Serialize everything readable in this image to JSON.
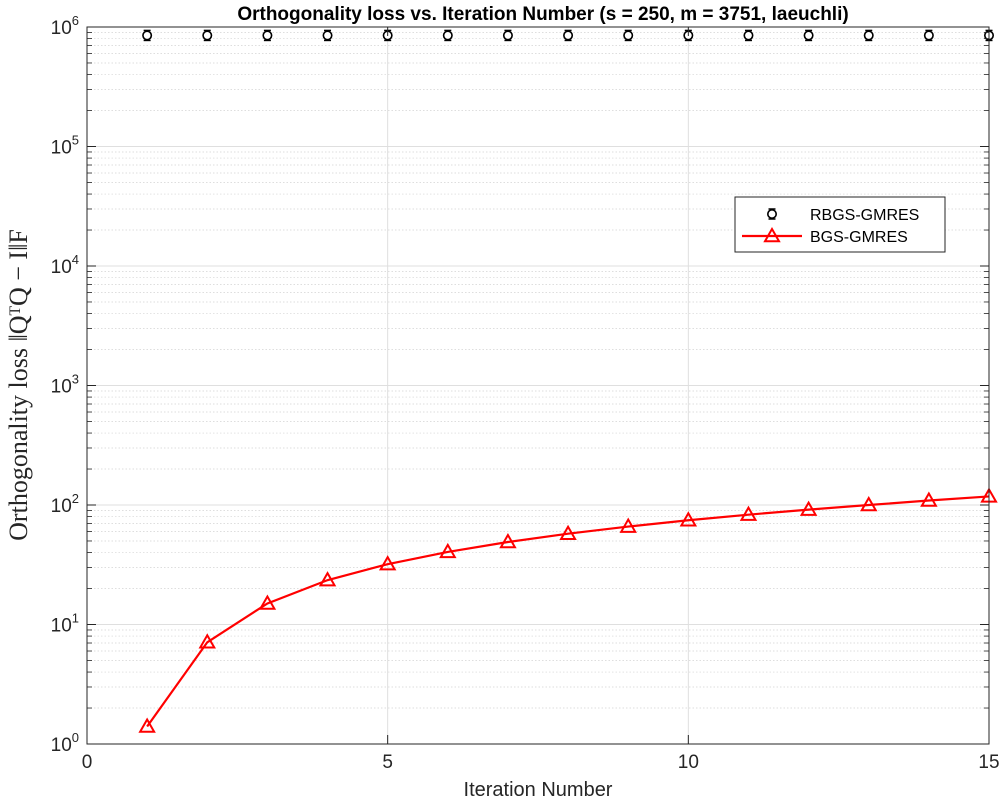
{
  "chart_data": {
    "type": "line",
    "title": "Orthogonality loss vs. Iteration Number (s = 250, m = 3751, laeuchli)",
    "xlabel": "Iteration Number",
    "ylabel": "Orthogonality loss ‖QᵀQ − I‖F",
    "xlim": [
      0,
      15
    ],
    "ylim": [
      1,
      1000000
    ],
    "yscale": "log",
    "grid": true,
    "minor_grid": true,
    "legend_position": "upper-right",
    "x_ticks": [
      0,
      5,
      10,
      15
    ],
    "y_ticks": [
      {
        "base": "10",
        "exp": "0"
      },
      {
        "base": "10",
        "exp": "1"
      },
      {
        "base": "10",
        "exp": "2"
      },
      {
        "base": "10",
        "exp": "3"
      },
      {
        "base": "10",
        "exp": "4"
      },
      {
        "base": "10",
        "exp": "5"
      },
      {
        "base": "10",
        "exp": "6"
      }
    ],
    "series": [
      {
        "name": "RBGS-GMRES",
        "color": "#000000",
        "marker": "errorbar-circle",
        "line": "none",
        "x": [
          1,
          2,
          3,
          4,
          5,
          6,
          7,
          8,
          9,
          10,
          11,
          12,
          13,
          14,
          15
        ],
        "y": [
          850000,
          850000,
          850000,
          850000,
          850000,
          850000,
          850000,
          850000,
          850000,
          850000,
          850000,
          850000,
          850000,
          850000,
          850000
        ]
      },
      {
        "name": "BGS-GMRES",
        "color": "#ff0000",
        "marker": "triangle",
        "line": "solid",
        "x": [
          1,
          2,
          3,
          4,
          5,
          6,
          7,
          8,
          9,
          10,
          11,
          12,
          13,
          14,
          15
        ],
        "y": [
          1.4,
          7.1,
          15,
          23.5,
          32,
          40.5,
          49,
          57.5,
          66,
          74.5,
          83,
          91.5,
          100,
          109,
          118
        ]
      }
    ]
  }
}
